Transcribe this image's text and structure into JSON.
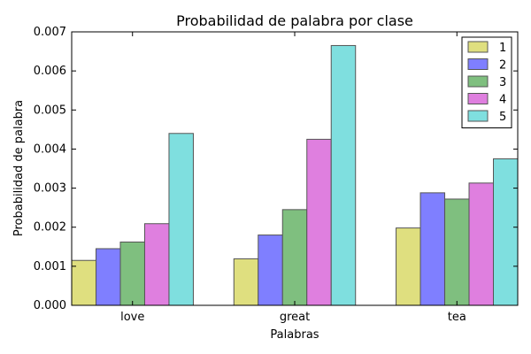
{
  "chart_data": {
    "type": "bar",
    "title": "Probabilidad de palabra por clase",
    "xlabel": "Palabras",
    "ylabel": "Probabilidad de palabra",
    "categories": [
      "love",
      "great",
      "tea"
    ],
    "ylim": [
      0,
      0.007
    ],
    "yticks": [
      "0.000",
      "0.001",
      "0.002",
      "0.003",
      "0.004",
      "0.005",
      "0.006",
      "0.007"
    ],
    "legend_position": "top-right",
    "grid": false,
    "series": [
      {
        "name": "1",
        "color": "#dfdf7f",
        "values": [
          0.00115,
          0.00119,
          0.00198
        ]
      },
      {
        "name": "2",
        "color": "#7f7fff",
        "values": [
          0.00145,
          0.0018,
          0.00288
        ]
      },
      {
        "name": "3",
        "color": "#7fbf7f",
        "values": [
          0.00162,
          0.00245,
          0.00272
        ]
      },
      {
        "name": "4",
        "color": "#df7fdf",
        "values": [
          0.00209,
          0.00425,
          0.00313
        ]
      },
      {
        "name": "5",
        "color": "#7fdfdf",
        "values": [
          0.0044,
          0.00665,
          0.00375
        ]
      }
    ]
  }
}
